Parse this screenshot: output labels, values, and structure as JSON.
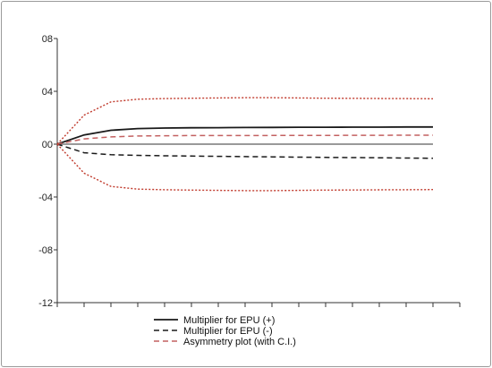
{
  "chart_data": {
    "type": "line",
    "title": "",
    "xlabel": "",
    "ylabel": "",
    "x": [
      0,
      1,
      2,
      3,
      4,
      5,
      6,
      7,
      8,
      9,
      10,
      11,
      12,
      13,
      14
    ],
    "xlim": [
      0,
      15
    ],
    "ylim": [
      -12,
      8
    ],
    "yticks": [
      8,
      4,
      0,
      -4,
      -8,
      -12
    ],
    "ytick_labels": [
      "08",
      "04",
      "00",
      "-04",
      "-08",
      "-12"
    ],
    "grid": false,
    "legend_position": "bottom-center",
    "series": [
      {
        "name": "Multiplier for EPU (+)",
        "style": "solid",
        "color": "#1a1a1a",
        "values": [
          0,
          0.7,
          1.05,
          1.18,
          1.22,
          1.24,
          1.25,
          1.26,
          1.27,
          1.28,
          1.28,
          1.29,
          1.29,
          1.3,
          1.3
        ]
      },
      {
        "name": "Multiplier for EPU (-)",
        "style": "dashed",
        "color": "#1a1a1a",
        "values": [
          0,
          -0.65,
          -0.8,
          -0.85,
          -0.88,
          -0.9,
          -0.92,
          -0.94,
          -0.96,
          -0.98,
          -1.0,
          -1.02,
          -1.03,
          -1.05,
          -1.07
        ]
      },
      {
        "name": "Asymmetry plot (with C.I.)",
        "style": "dashed",
        "color": "#c36060",
        "values": [
          0,
          0.4,
          0.55,
          0.62,
          0.64,
          0.65,
          0.65,
          0.65,
          0.66,
          0.66,
          0.66,
          0.67,
          0.67,
          0.68,
          0.68
        ]
      },
      {
        "name": "",
        "style": "dotted",
        "color": "#c0392b",
        "values": [
          0,
          2.2,
          3.2,
          3.4,
          3.45,
          3.48,
          3.5,
          3.52,
          3.52,
          3.5,
          3.48,
          3.47,
          3.46,
          3.45,
          3.44
        ]
      },
      {
        "name": "",
        "style": "dotted",
        "color": "#c0392b",
        "values": [
          0,
          -2.2,
          -3.2,
          -3.4,
          -3.45,
          -3.48,
          -3.5,
          -3.52,
          -3.52,
          -3.5,
          -3.48,
          -3.47,
          -3.46,
          -3.45,
          -3.44
        ]
      }
    ],
    "reference_line": 0
  }
}
